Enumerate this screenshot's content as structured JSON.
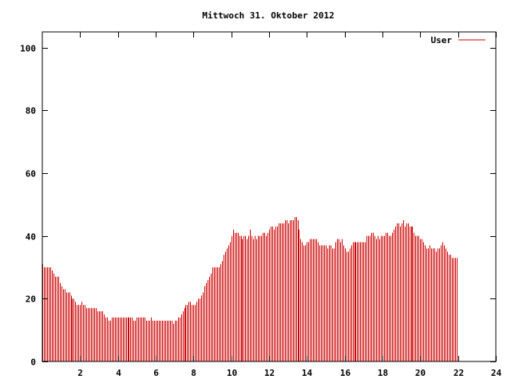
{
  "chart_data": {
    "type": "bar",
    "title": "Mittwoch 31. Oktober 2012",
    "xlabel": "",
    "ylabel": "",
    "xlim": [
      0,
      24
    ],
    "ylim": [
      0,
      105
    ],
    "xticks": [
      2,
      4,
      6,
      8,
      10,
      12,
      14,
      16,
      18,
      20,
      22,
      24
    ],
    "yticks": [
      0,
      20,
      40,
      60,
      80,
      100
    ],
    "grid": false,
    "legend_position": "top-right",
    "color": "#cc0000",
    "series": [
      {
        "name": "User",
        "step_minutes": 5,
        "values": [
          31,
          30,
          30,
          30,
          30,
          30,
          29,
          28,
          27,
          27,
          27,
          25,
          24,
          23,
          23,
          22,
          22,
          22,
          21,
          20,
          20,
          19,
          18,
          18,
          18,
          19,
          18,
          18,
          17,
          17,
          17,
          17,
          17,
          17,
          17,
          16,
          16,
          16,
          16,
          15,
          14,
          14,
          13,
          13,
          14,
          14,
          14,
          14,
          14,
          14,
          14,
          14,
          14,
          14,
          14,
          14,
          14,
          14,
          13,
          13,
          14,
          14,
          14,
          14,
          14,
          14,
          13,
          13,
          13,
          14,
          13,
          13,
          13,
          13,
          13,
          13,
          13,
          13,
          13,
          13,
          13,
          13,
          13,
          12,
          13,
          13,
          14,
          14,
          15,
          16,
          17,
          18,
          18,
          19,
          19,
          18,
          18,
          18,
          19,
          20,
          20,
          21,
          22,
          24,
          25,
          26,
          27,
          28,
          30,
          30,
          30,
          30,
          30,
          31,
          32,
          34,
          35,
          36,
          37,
          38,
          40,
          42,
          41,
          41,
          41,
          40,
          40,
          39,
          40,
          40,
          39,
          40,
          42,
          40,
          39,
          40,
          39,
          40,
          40,
          40,
          41,
          41,
          40,
          41,
          42,
          43,
          43,
          42,
          43,
          43,
          44,
          44,
          44,
          44,
          45,
          45,
          44,
          45,
          45,
          45,
          46,
          46,
          45,
          42,
          39,
          38,
          37,
          37,
          38,
          38,
          39,
          39,
          39,
          39,
          39,
          38,
          37,
          37,
          37,
          37,
          37,
          36,
          37,
          37,
          36,
          36,
          38,
          39,
          39,
          38,
          39,
          37,
          36,
          35,
          35,
          36,
          37,
          38,
          38,
          38,
          38,
          38,
          38,
          38,
          38,
          38,
          40,
          40,
          40,
          41,
          41,
          40,
          39,
          40,
          39,
          40,
          40,
          40,
          41,
          41,
          40,
          40,
          41,
          42,
          43,
          44,
          44,
          43,
          44,
          45,
          43,
          44,
          44,
          43,
          43,
          43,
          41,
          40,
          40,
          40,
          39,
          39,
          38,
          37,
          36,
          36,
          37,
          36,
          36,
          36,
          35,
          36,
          36,
          37,
          38,
          37,
          36,
          35,
          34,
          34,
          33,
          33,
          33,
          33
        ]
      }
    ]
  }
}
